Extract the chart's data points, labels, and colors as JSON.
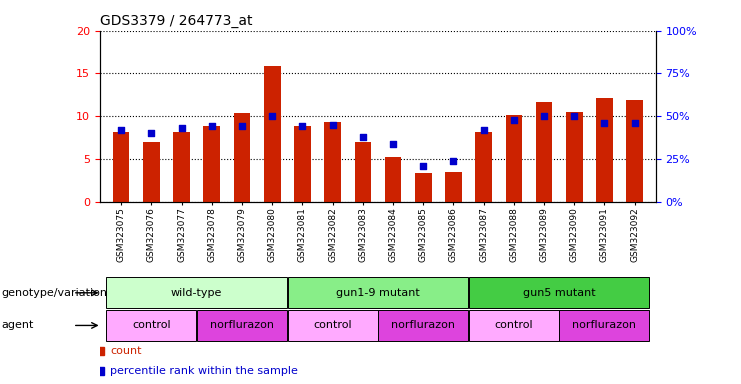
{
  "title": "GDS3379 / 264773_at",
  "samples": [
    "GSM323075",
    "GSM323076",
    "GSM323077",
    "GSM323078",
    "GSM323079",
    "GSM323080",
    "GSM323081",
    "GSM323082",
    "GSM323083",
    "GSM323084",
    "GSM323085",
    "GSM323086",
    "GSM323087",
    "GSM323088",
    "GSM323089",
    "GSM323090",
    "GSM323091",
    "GSM323092"
  ],
  "counts": [
    8.1,
    7.0,
    8.2,
    8.9,
    10.4,
    15.9,
    8.9,
    9.3,
    7.0,
    5.2,
    3.4,
    3.5,
    8.1,
    10.1,
    11.7,
    10.5,
    12.1,
    11.9
  ],
  "percentile_ranks": [
    42,
    40,
    43,
    44,
    44,
    50,
    44,
    45,
    38,
    34,
    21,
    24,
    42,
    48,
    50,
    50,
    46,
    46
  ],
  "bar_color": "#cc2200",
  "square_color": "#0000cc",
  "left_ylim": [
    0,
    20
  ],
  "right_ylim": [
    0,
    100
  ],
  "left_yticks": [
    0,
    5,
    10,
    15,
    20
  ],
  "right_yticks": [
    0,
    25,
    50,
    75,
    100
  ],
  "right_yticklabels": [
    "0%",
    "25%",
    "50%",
    "75%",
    "100%"
  ],
  "genotype_groups": [
    {
      "label": "wild-type",
      "start": 0,
      "end": 5,
      "color": "#ccffcc"
    },
    {
      "label": "gun1-9 mutant",
      "start": 6,
      "end": 11,
      "color": "#88ee88"
    },
    {
      "label": "gun5 mutant",
      "start": 12,
      "end": 17,
      "color": "#44cc44"
    }
  ],
  "agent_groups": [
    {
      "label": "control",
      "start": 0,
      "end": 2,
      "color": "#ffaaff"
    },
    {
      "label": "norflurazon",
      "start": 3,
      "end": 5,
      "color": "#dd44dd"
    },
    {
      "label": "control",
      "start": 6,
      "end": 8,
      "color": "#ffaaff"
    },
    {
      "label": "norflurazon",
      "start": 9,
      "end": 11,
      "color": "#dd44dd"
    },
    {
      "label": "control",
      "start": 12,
      "end": 14,
      "color": "#ffaaff"
    },
    {
      "label": "norflurazon",
      "start": 15,
      "end": 17,
      "color": "#dd44dd"
    }
  ],
  "genotype_label": "genotype/variation",
  "agent_label": "agent",
  "legend_count_label": "count",
  "legend_percentile_label": "percentile rank within the sample",
  "xlabel_area_color": "#cccccc"
}
